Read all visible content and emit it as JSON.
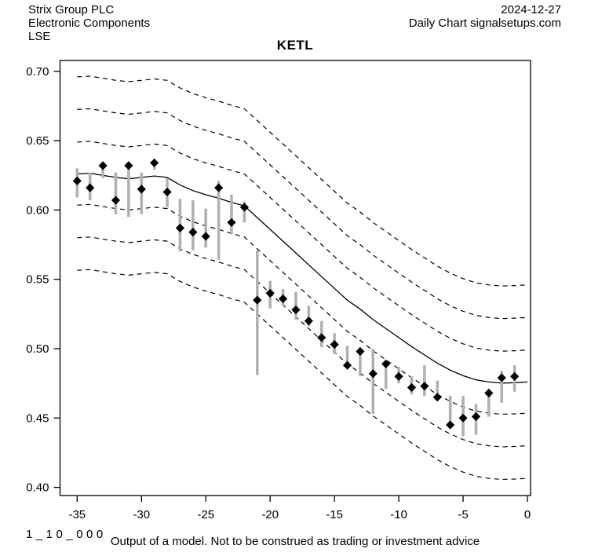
{
  "header": {
    "company": "Strix Group PLC",
    "sector": "Electronic Components",
    "exchange": "LSE",
    "date": "2024-12-27",
    "chart_label": "Daily Chart signalsetups.com"
  },
  "title": "KETL",
  "footer": {
    "code": "1_10_000",
    "disclaimer": "Output of a model. Not to be construed as trading or investment advice"
  },
  "colors": {
    "foreground": "#000000",
    "range_bar": "#b1b1b1",
    "background": "#ffffff"
  },
  "chart_data": {
    "type": "line",
    "title": "KETL",
    "xlabel": "",
    "ylabel": "",
    "grid": false,
    "legend": "none",
    "x_ticks": [
      -35,
      -30,
      -25,
      -20,
      -15,
      -10,
      -5,
      0
    ],
    "y_ticks": [
      0.4,
      0.45,
      0.5,
      0.55,
      0.6,
      0.65,
      0.7
    ],
    "xlim": [
      -36.3,
      0.25
    ],
    "ylim": [
      0.394,
      0.708
    ],
    "center_line": {
      "x": [
        -35,
        -34,
        -33,
        -32,
        -31,
        -30,
        -29,
        -28,
        -27,
        -26,
        -25,
        -24,
        -23,
        -22,
        -21,
        -20,
        -19,
        -18,
        -17,
        -16,
        -15,
        -14,
        -13,
        -12,
        -11,
        -10,
        -9,
        -8,
        -7,
        -6,
        -5,
        -4,
        -3,
        -2,
        -1,
        0
      ],
      "values": [
        0.626,
        0.6265,
        0.625,
        0.6235,
        0.6225,
        0.6235,
        0.6245,
        0.6235,
        0.618,
        0.614,
        0.611,
        0.6085,
        0.6055,
        0.603,
        0.5945,
        0.586,
        0.5775,
        0.569,
        0.5605,
        0.552,
        0.5435,
        0.535,
        0.5285,
        0.521,
        0.5145,
        0.508,
        0.5015,
        0.4955,
        0.4895,
        0.4845,
        0.4805,
        0.4775,
        0.476,
        0.4752,
        0.4755,
        0.476
      ]
    },
    "dashed_band_offsets": [
      0.07,
      0.0465,
      0.023,
      -0.0225,
      -0.046,
      -0.0695
    ],
    "points": {
      "x": [
        -35,
        -34,
        -33,
        -32,
        -31,
        -30,
        -29,
        -28,
        -27,
        -26,
        -25,
        -24,
        -23,
        -22,
        -21,
        -20,
        -19,
        -18,
        -17,
        -16,
        -15,
        -14,
        -13,
        -12,
        -11,
        -10,
        -9,
        -8,
        -7,
        -6,
        -5,
        -4,
        -3,
        -2,
        -1
      ],
      "close": [
        0.621,
        0.616,
        0.632,
        0.607,
        0.632,
        0.615,
        0.634,
        0.613,
        0.587,
        0.584,
        0.581,
        0.616,
        0.591,
        0.602,
        0.535,
        0.54,
        0.536,
        0.528,
        0.52,
        0.508,
        0.503,
        0.488,
        0.498,
        0.482,
        0.489,
        0.48,
        0.472,
        0.473,
        0.465,
        0.445,
        0.45,
        0.451,
        0.468,
        0.479,
        0.48
      ],
      "high": [
        0.63,
        0.627,
        0.634,
        0.627,
        0.633,
        0.627,
        0.636,
        0.623,
        0.608,
        0.607,
        0.601,
        0.621,
        0.611,
        0.606,
        0.571,
        0.549,
        0.543,
        0.541,
        0.531,
        0.52,
        0.511,
        0.502,
        0.5,
        0.5,
        0.49,
        0.487,
        0.48,
        0.488,
        0.477,
        0.466,
        0.466,
        0.46,
        0.471,
        0.484,
        0.488
      ],
      "low": [
        0.609,
        0.607,
        0.623,
        0.597,
        0.595,
        0.597,
        0.629,
        0.602,
        0.57,
        0.571,
        0.573,
        0.564,
        0.583,
        0.591,
        0.481,
        0.529,
        0.531,
        0.521,
        0.516,
        0.501,
        0.496,
        0.486,
        0.48,
        0.453,
        0.471,
        0.475,
        0.467,
        0.466,
        0.463,
        0.443,
        0.437,
        0.438,
        0.451,
        0.461,
        0.469
      ]
    }
  }
}
